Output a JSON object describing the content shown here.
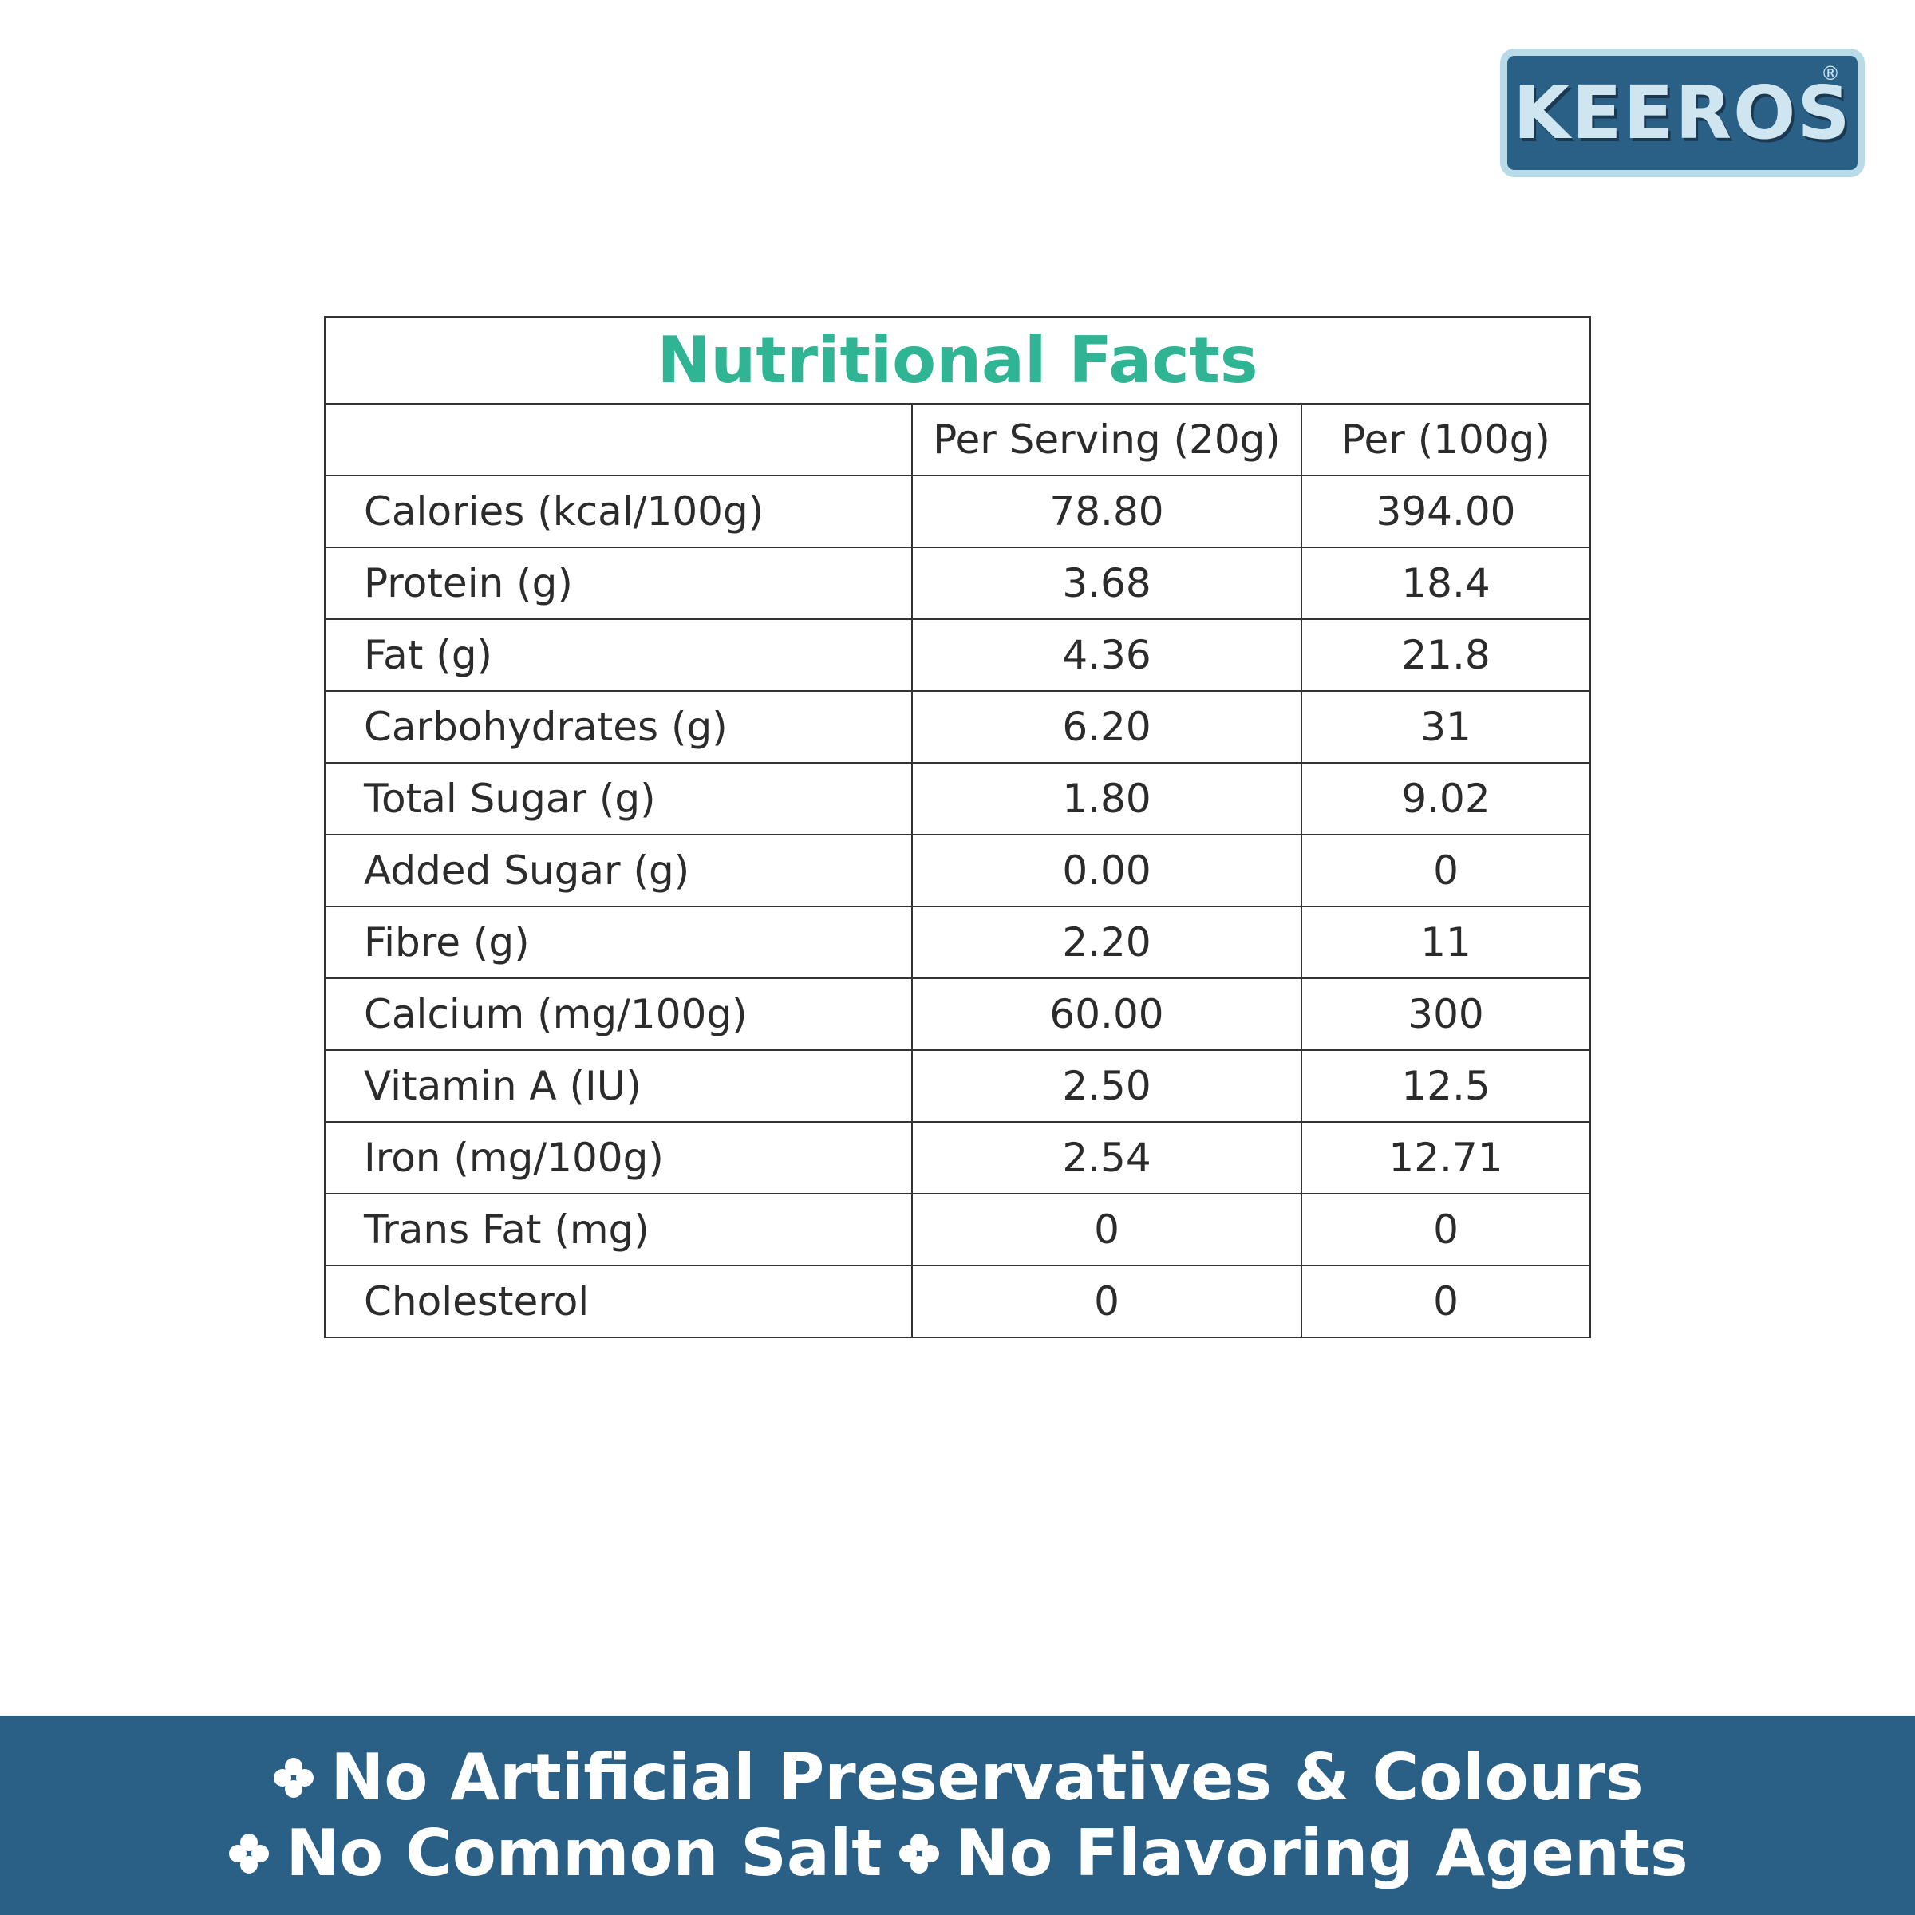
{
  "logo": {
    "name": "KEEROS",
    "mark": "®"
  },
  "table": {
    "title": "Nutritional Facts",
    "header": [
      "Per Serving (20g)",
      "Per (100g)"
    ],
    "rows": [
      [
        "Calories (kcal/100g)",
        "78.80",
        "394.00"
      ],
      [
        "Protein (g)",
        "3.68",
        "18.4"
      ],
      [
        "Fat (g)",
        "4.36",
        "21.8"
      ],
      [
        "Carbohydrates (g)",
        "6.20",
        "31"
      ],
      [
        "Total Sugar (g)",
        "1.80",
        "9.02"
      ],
      [
        "Added Sugar (g)",
        "0.00",
        "0"
      ],
      [
        "Fibre (g)",
        "2.20",
        "11"
      ],
      [
        "Calcium (mg/100g)",
        "60.00",
        "300"
      ],
      [
        "Vitamin A (IU)",
        "2.50",
        "12.5"
      ],
      [
        "Iron (mg/100g)",
        "2.54",
        "12.71"
      ],
      [
        "Trans Fat (mg)",
        "0",
        "0"
      ],
      [
        "Cholesterol",
        "0",
        "0"
      ]
    ]
  },
  "footer": {
    "lines": [
      [
        "No Artificial Preservatives & Colours"
      ],
      [
        "No Common Salt",
        "No Flavoring Agents"
      ]
    ]
  }
}
